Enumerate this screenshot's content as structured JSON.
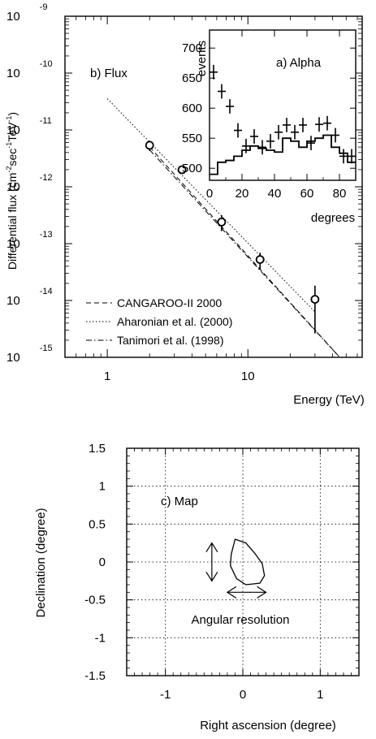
{
  "chart_data": [
    {
      "panel": "b) Flux",
      "type": "scatter",
      "title": "",
      "xlabel": "Energy (TeV)",
      "ylabel_parts": [
        "Differential flux (cm",
        "-2",
        "sec",
        "-1",
        "TeV",
        "-1",
        ")"
      ],
      "xlim": [
        0.5,
        65
      ],
      "ylim_exp": [
        -15,
        -9
      ],
      "xscale": "log",
      "yscale": "log",
      "x_ticks": [
        {
          "v": 1,
          "label": "1"
        },
        {
          "v": 10,
          "label": "10"
        }
      ],
      "y_ticks": [
        {
          "e": -9,
          "base": "10",
          "exp": "-9"
        },
        {
          "e": -10,
          "base": "10",
          "exp": "-10"
        },
        {
          "e": -11,
          "base": "10",
          "exp": "-11"
        },
        {
          "e": -12,
          "base": "10",
          "exp": "-12"
        },
        {
          "e": -13,
          "base": "10",
          "exp": "-13"
        },
        {
          "e": -14,
          "base": "10",
          "exp": "-14"
        },
        {
          "e": -15,
          "base": "10",
          "exp": "-15"
        }
      ],
      "points": [
        {
          "x": 2.0,
          "y_exp": -11.27,
          "err_lo": 0.1,
          "err_hi": 0.08
        },
        {
          "x": 3.4,
          "y_exp": -11.7,
          "err_lo": 0.03,
          "err_hi": 0.03
        },
        {
          "x": 6.5,
          "y_exp": -12.62,
          "err_lo": 0.16,
          "err_hi": 0.12
        },
        {
          "x": 12.2,
          "y_exp": -13.28,
          "err_lo": 0.18,
          "err_hi": 0.12
        },
        {
          "x": 30.0,
          "y_exp": -13.98,
          "err_lo": 0.6,
          "err_hi": 0.24
        }
      ],
      "series": [
        {
          "name": "CANGAROO-II 2000",
          "dash": "6,4",
          "from": [
            2.0,
            -11.3
          ],
          "to": [
            45,
            -15.0
          ]
        },
        {
          "name": "Aharonian et al. (2000)",
          "dash": "1.5,2.5",
          "from": [
            1.0,
            -10.45
          ],
          "to": [
            30,
            -14.2
          ]
        },
        {
          "name": "Tanimori  et al. (1998)",
          "dash": "7,3,1.5,3",
          "from": [
            2.0,
            -11.35
          ],
          "to": [
            45,
            -15.0
          ]
        }
      ]
    },
    {
      "panel": "a) Alpha",
      "type": "line",
      "title": "",
      "xlabel": "degrees",
      "ylabel": "events",
      "xlim": [
        0,
        90
      ],
      "ylim": [
        480,
        730
      ],
      "x_ticks": [
        0,
        20,
        40,
        60,
        80
      ],
      "y_ticks": [
        500,
        550,
        600,
        650,
        700
      ],
      "on_source": {
        "x": [
          2.5,
          7.5,
          12.5,
          17.5,
          22.5,
          27.5,
          32.5,
          37.5,
          42.5,
          47.5,
          52.5,
          57.5,
          62.5,
          67.5,
          72.5,
          77.5,
          82.5,
          87.5
        ],
        "y": [
          660,
          628,
          603,
          563,
          537,
          553,
          535,
          545,
          560,
          572,
          560,
          572,
          542,
          573,
          575,
          555,
          520,
          520
        ],
        "err": [
          12,
          12,
          12,
          12,
          12,
          12,
          12,
          12,
          12,
          12,
          12,
          12,
          12,
          12,
          12,
          12,
          12,
          12
        ]
      },
      "off_source": {
        "edges": [
          0,
          5,
          10,
          15,
          20,
          25,
          30,
          35,
          40,
          45,
          50,
          55,
          60,
          65,
          70,
          75,
          80,
          85,
          90
        ],
        "y": [
          490,
          510,
          513,
          520,
          530,
          537,
          533,
          530,
          527,
          550,
          545,
          535,
          545,
          550,
          555,
          535,
          525,
          510
        ]
      }
    },
    {
      "panel": "c) Map",
      "type": "contour",
      "title": "",
      "xlabel": "Right ascension (degree)",
      "ylabel": "Declination (degree)",
      "xlim": [
        -1.5,
        1.5
      ],
      "ylim": [
        -1.5,
        1.5
      ],
      "x_ticks": [
        -1,
        0,
        1
      ],
      "y_ticks": [
        1.5,
        1,
        0.5,
        0,
        -0.5,
        -1,
        -1.5
      ],
      "grid": true,
      "contour": [
        [
          -0.1,
          0.3
        ],
        [
          0.04,
          0.25
        ],
        [
          0.15,
          0.12
        ],
        [
          0.25,
          -0.02
        ],
        [
          0.28,
          -0.18
        ],
        [
          0.22,
          -0.28
        ],
        [
          0.04,
          -0.3
        ],
        [
          -0.08,
          -0.22
        ],
        [
          -0.16,
          -0.05
        ],
        [
          -0.15,
          0.1
        ],
        [
          -0.1,
          0.3
        ]
      ],
      "arrows": [
        {
          "orientation": "vertical",
          "center": [
            -0.4,
            0.0
          ],
          "half_length": 0.25
        },
        {
          "orientation": "horizontal",
          "center": [
            0.05,
            -0.4
          ],
          "half_length": 0.25
        }
      ],
      "annotation": "Angular resolution"
    }
  ],
  "legend": [
    "CANGAROO-II 2000",
    "Aharonian et al. (2000)",
    "Tanimori  et al. (1998)"
  ]
}
